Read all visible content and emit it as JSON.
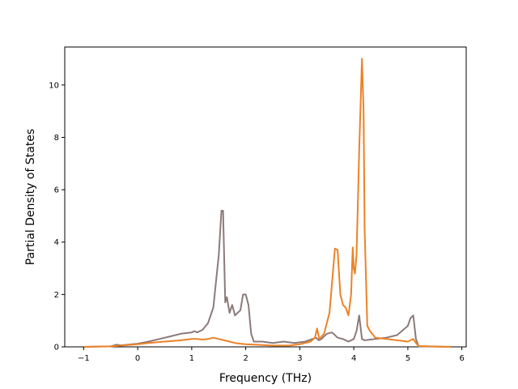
{
  "chart_data": {
    "type": "line",
    "title": "",
    "xlabel": "Frequency (THz)",
    "ylabel": "Partial Density of States",
    "xlim": [
      -1.35,
      6.08
    ],
    "ylim": [
      0,
      11.45
    ],
    "x_ticks": [
      -1,
      0,
      1,
      2,
      3,
      4,
      5,
      6
    ],
    "x_tick_labels": [
      "−1",
      "0",
      "1",
      "2",
      "3",
      "4",
      "5",
      "6"
    ],
    "y_ticks": [
      0,
      2,
      4,
      6,
      8,
      10
    ],
    "y_tick_labels": [
      "0",
      "2",
      "4",
      "6",
      "8",
      "10"
    ],
    "grid": false,
    "legend": "none",
    "series": [
      {
        "color": "#8c7a7a",
        "x": [
          -1.0,
          -0.5,
          -0.4,
          -0.3,
          -0.1,
          0.0,
          0.2,
          0.4,
          0.6,
          0.8,
          1.0,
          1.05,
          1.1,
          1.2,
          1.3,
          1.4,
          1.45,
          1.5,
          1.55,
          1.58,
          1.62,
          1.65,
          1.7,
          1.75,
          1.8,
          1.85,
          1.9,
          1.95,
          2.0,
          2.05,
          2.1,
          2.15,
          2.2,
          2.3,
          2.5,
          2.7,
          2.9,
          3.1,
          3.3,
          3.35,
          3.4,
          3.5,
          3.6,
          3.7,
          3.8,
          3.9,
          4.0,
          4.05,
          4.1,
          4.15,
          4.2,
          4.4,
          4.6,
          4.8,
          5.0,
          5.05,
          5.1,
          5.15,
          5.2,
          5.8
        ],
        "y": [
          0.0,
          0.02,
          0.08,
          0.06,
          0.1,
          0.12,
          0.2,
          0.3,
          0.4,
          0.5,
          0.55,
          0.6,
          0.55,
          0.65,
          0.9,
          1.5,
          2.5,
          3.5,
          5.2,
          5.2,
          1.7,
          1.9,
          1.3,
          1.6,
          1.2,
          1.3,
          1.4,
          2.0,
          2.0,
          1.6,
          0.5,
          0.2,
          0.2,
          0.2,
          0.15,
          0.2,
          0.15,
          0.2,
          0.35,
          0.25,
          0.3,
          0.5,
          0.55,
          0.35,
          0.3,
          0.2,
          0.3,
          0.6,
          1.2,
          0.3,
          0.25,
          0.3,
          0.35,
          0.45,
          0.8,
          1.1,
          1.2,
          0.3,
          0.02,
          0.0
        ]
      },
      {
        "color": "#ec8227",
        "x": [
          -1.0,
          -0.5,
          -0.3,
          0.0,
          0.2,
          0.5,
          0.8,
          1.0,
          1.1,
          1.2,
          1.3,
          1.4,
          1.5,
          1.6,
          1.7,
          1.8,
          1.9,
          2.0,
          2.2,
          2.5,
          2.8,
          3.0,
          3.2,
          3.28,
          3.32,
          3.36,
          3.45,
          3.55,
          3.6,
          3.65,
          3.7,
          3.75,
          3.8,
          3.85,
          3.9,
          3.95,
          3.98,
          4.0,
          4.02,
          4.05,
          4.1,
          4.15,
          4.18,
          4.2,
          4.25,
          4.3,
          4.4,
          4.6,
          4.8,
          5.0,
          5.1,
          5.15,
          5.2,
          5.8
        ],
        "y": [
          0.0,
          0.02,
          0.05,
          0.1,
          0.15,
          0.2,
          0.25,
          0.3,
          0.3,
          0.28,
          0.3,
          0.35,
          0.3,
          0.25,
          0.2,
          0.15,
          0.12,
          0.1,
          0.08,
          0.05,
          0.05,
          0.1,
          0.2,
          0.35,
          0.7,
          0.3,
          0.5,
          1.3,
          2.5,
          3.75,
          3.7,
          2.0,
          1.6,
          1.5,
          1.2,
          2.0,
          3.8,
          3.0,
          2.8,
          3.5,
          7.5,
          11.0,
          9.0,
          4.5,
          0.8,
          0.6,
          0.35,
          0.3,
          0.25,
          0.2,
          0.3,
          0.15,
          0.03,
          0.0
        ]
      }
    ]
  }
}
